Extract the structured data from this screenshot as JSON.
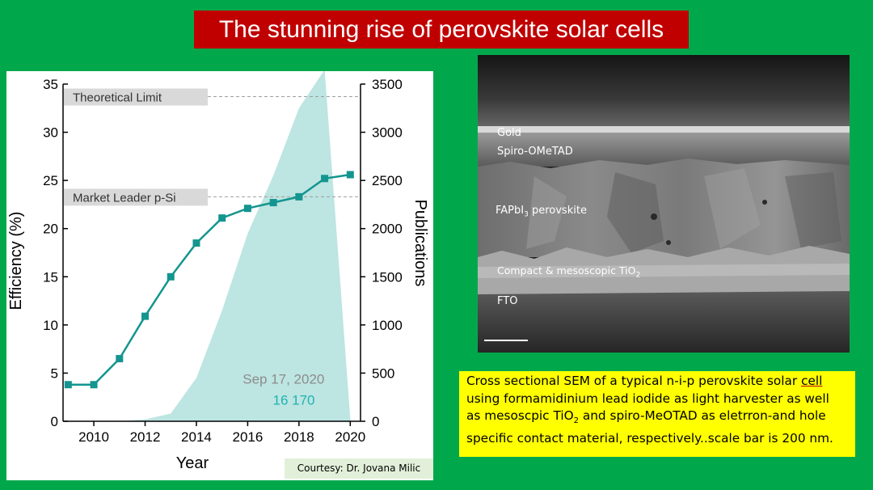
{
  "title": "The stunning rise of perovskite solar cells",
  "chart_data": {
    "type": "line",
    "x_label": "Year",
    "y_left_label": "Efficiency (%)",
    "y_right_label": "Publications",
    "x_ticks": [
      2010,
      2012,
      2014,
      2016,
      2018,
      2020
    ],
    "y_left_ticks": [
      0,
      5,
      10,
      15,
      20,
      25,
      30,
      35
    ],
    "y_right_ticks": [
      0,
      500,
      1000,
      1500,
      2000,
      2500,
      3000,
      3500
    ],
    "x_range": [
      2008.8,
      2020.4
    ],
    "y_left_range": [
      0,
      35
    ],
    "y_right_range": [
      0,
      3500
    ],
    "series": [
      {
        "axis": "left",
        "type": "line",
        "color": "#14958f",
        "x": [
          2009,
          2010,
          2011,
          2012,
          2013,
          2014,
          2015,
          2016,
          2017,
          2018,
          2019,
          2020
        ],
        "values": [
          3.8,
          3.8,
          6.5,
          10.9,
          15.0,
          18.5,
          21.1,
          22.1,
          22.7,
          23.3,
          25.2,
          25.6
        ]
      },
      {
        "axis": "right",
        "type": "area",
        "color": "#bde5e2",
        "x": [
          2011,
          2012,
          2013,
          2014,
          2015,
          2016,
          2017,
          2018,
          2019,
          2020
        ],
        "values": [
          0,
          20,
          80,
          450,
          1150,
          1950,
          2550,
          3250,
          3650,
          30
        ]
      }
    ],
    "reference_lines": [
      {
        "label": "Theoretical Limit",
        "value": 33.7,
        "axis": "left"
      },
      {
        "label": "Market Leader p-Si",
        "value": 23.3,
        "axis": "left"
      }
    ],
    "annotation_date": "Sep 17, 2020",
    "annotation_count": "16 170",
    "annotation_date_color": "#8c8c8c",
    "annotation_count_color": "#1fb3b1"
  },
  "courtesy": "Courtesy: Dr. Jovana Milic",
  "sem": {
    "label_gold": "Gold",
    "label_spiro": "Spiro-OMeTAD",
    "label_fapbi_pre": "FAPbI",
    "label_fapbi_sub": "3",
    "label_fapbi_post": " perovskite",
    "label_compact_pre": "Compact & mesoscopic TiO",
    "label_compact_sub": "2",
    "label_fto": "FTO"
  },
  "caption": {
    "line1_pre": "Cross sectional SEM of a typical n-i-p perovskite solar ",
    "line1_underlined": "cell",
    "line2": "using formamidinium lead iodide as light harvester as well",
    "line3_pre": "as mesoscpic TiO",
    "line3_sub": "2",
    "line3_post": " and spiro-MeOTAD as eletrron-and hole",
    "line4": "specific contact material, respectively..scale bar is 200 nm."
  },
  "colors": {
    "background": "#00a84b",
    "title_bg": "#c00000",
    "caption_bg": "#ffff00",
    "courtesy_bg": "#e2f0d9"
  }
}
